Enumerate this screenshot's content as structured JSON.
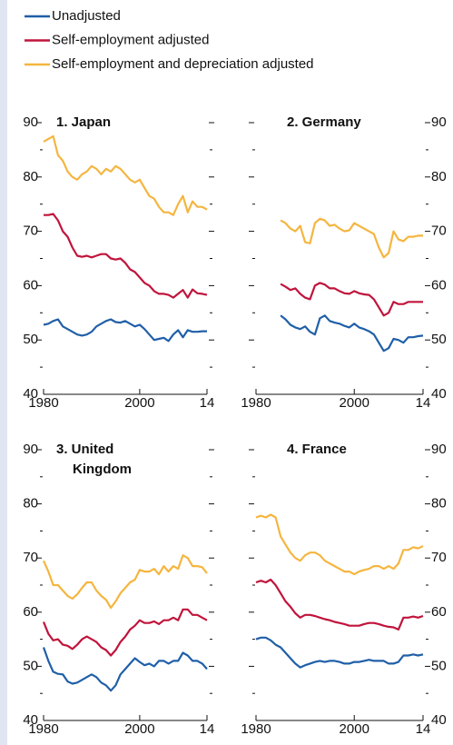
{
  "chart_data": [
    {
      "type": "line",
      "title": "1. Japan",
      "yaxis": "left",
      "x": [
        1980,
        1981,
        1982,
        1983,
        1984,
        1985,
        1986,
        1987,
        1988,
        1989,
        1990,
        1991,
        1992,
        1993,
        1994,
        1995,
        1996,
        1997,
        1998,
        1999,
        2000,
        2001,
        2002,
        2003,
        2004,
        2005,
        2006,
        2007,
        2008,
        2009,
        2010,
        2011,
        2012,
        2013,
        2014
      ],
      "xlim": [
        1980,
        2014
      ],
      "xticks": [
        1980,
        2000,
        {
          "value": 2014,
          "label": "14"
        }
      ],
      "ylim": [
        40,
        90
      ],
      "yticks": [
        40,
        50,
        60,
        70,
        80,
        90
      ],
      "yminor": [
        45,
        55,
        65,
        75,
        85
      ],
      "series": [
        {
          "name": "Unadjusted",
          "color": "#1f5fa8",
          "values": [
            52.8,
            53,
            53.5,
            53.8,
            52.5,
            52,
            51.5,
            51,
            50.8,
            51,
            51.5,
            52.5,
            53,
            53.5,
            53.8,
            53.3,
            53.2,
            53.5,
            53,
            52.5,
            52.8,
            52,
            51,
            50,
            50.2,
            50.4,
            49.8,
            51,
            51.8,
            50.5,
            51.8,
            51.5,
            51.5,
            51.6,
            51.6
          ]
        },
        {
          "name": "Self-employment adjusted",
          "color": "#c0143c",
          "values": [
            73,
            73,
            73.2,
            72,
            70,
            69,
            67,
            65.5,
            65.3,
            65.5,
            65.2,
            65.5,
            65.8,
            65.8,
            65,
            64.8,
            65,
            64.2,
            63,
            62.5,
            61.5,
            60.5,
            60,
            59,
            58.5,
            58.5,
            58.3,
            57.8,
            58.5,
            59.2,
            57.8,
            59.3,
            58.6,
            58.5,
            58.3
          ]
        },
        {
          "name": "Self-employment and depreciation adjusted",
          "color": "#f5b53f",
          "values": [
            86.5,
            87,
            87.5,
            84,
            83,
            81,
            80,
            79.5,
            80.5,
            81,
            82,
            81.5,
            80.5,
            81.5,
            81,
            82,
            81.5,
            80.5,
            79.5,
            79,
            79.5,
            78,
            76.5,
            76,
            74.5,
            73.5,
            73.5,
            73,
            75,
            76.5,
            73.5,
            75.5,
            74.5,
            74.5,
            74
          ]
        }
      ]
    },
    {
      "type": "line",
      "title": "2. Germany",
      "yaxis": "right",
      "x": [
        1985,
        1986,
        1987,
        1988,
        1989,
        1990,
        1991,
        1992,
        1993,
        1994,
        1995,
        1996,
        1997,
        1998,
        1999,
        2000,
        2001,
        2002,
        2003,
        2004,
        2005,
        2006,
        2007,
        2008,
        2009,
        2010,
        2011,
        2012,
        2013,
        2014
      ],
      "xlim": [
        1980,
        2014
      ],
      "xticks": [
        1980,
        2000,
        {
          "value": 2014,
          "label": "14"
        }
      ],
      "ylim": [
        40,
        90
      ],
      "yticks": [
        40,
        50,
        60,
        70,
        80,
        90
      ],
      "yminor": [
        45,
        55,
        65,
        75,
        85
      ],
      "series": [
        {
          "color": "#1f5fa8",
          "values": [
            54.5,
            53.8,
            52.8,
            52.3,
            52,
            52.5,
            51.5,
            51,
            54,
            54.5,
            53.5,
            53.2,
            53,
            52.6,
            52.3,
            53,
            52.3,
            52,
            51.6,
            51,
            49.5,
            48,
            48.5,
            50.2,
            50,
            49.5,
            50.5,
            50.5,
            50.7,
            50.8
          ]
        },
        {
          "color": "#c0143c",
          "values": [
            60.3,
            59.8,
            59.2,
            59.5,
            58.5,
            57.8,
            57.5,
            60,
            60.5,
            60.2,
            59.5,
            59.5,
            59,
            58.6,
            58.5,
            59,
            58.6,
            58.4,
            58.3,
            57.5,
            56,
            54.5,
            55,
            57,
            56.6,
            56.6,
            57,
            57,
            57,
            57
          ]
        },
        {
          "color": "#f5b53f",
          "values": [
            72,
            71.5,
            70.5,
            70,
            71,
            68,
            67.8,
            71.5,
            72.3,
            72,
            71,
            71.2,
            70.5,
            70,
            70.2,
            71.5,
            71,
            70.5,
            70,
            69.5,
            67,
            65.2,
            66,
            70,
            68.5,
            68.2,
            69,
            69,
            69.2,
            69.2
          ]
        }
      ]
    },
    {
      "type": "line",
      "title": "3. United Kingdom",
      "yaxis": "left",
      "x": [
        1980,
        1981,
        1982,
        1983,
        1984,
        1985,
        1986,
        1987,
        1988,
        1989,
        1990,
        1991,
        1992,
        1993,
        1994,
        1995,
        1996,
        1997,
        1998,
        1999,
        2000,
        2001,
        2002,
        2003,
        2004,
        2005,
        2006,
        2007,
        2008,
        2009,
        2010,
        2011,
        2012,
        2013,
        2014
      ],
      "xlim": [
        1980,
        2014
      ],
      "xticks": [
        1980,
        2000,
        {
          "value": 2014,
          "label": "14"
        }
      ],
      "ylim": [
        40,
        90
      ],
      "yticks": [
        40,
        50,
        60,
        70,
        80,
        90
      ],
      "yminor": [
        45,
        55,
        65,
        75,
        85
      ],
      "series": [
        {
          "color": "#1f5fa8",
          "values": [
            53.5,
            51,
            49,
            48.6,
            48.5,
            47.2,
            46.8,
            47,
            47.5,
            48,
            48.5,
            48,
            47,
            46.5,
            45.5,
            46.5,
            48.5,
            49.5,
            50.5,
            51.5,
            50.8,
            50.2,
            50.5,
            50,
            51,
            51,
            50.5,
            51,
            51,
            52.5,
            52,
            51,
            51,
            50.5,
            49.5
          ]
        },
        {
          "color": "#c0143c",
          "values": [
            58.2,
            56,
            54.8,
            55,
            54,
            53.8,
            53.2,
            54,
            55,
            55.5,
            55,
            54.5,
            53.5,
            53,
            52,
            53,
            54.5,
            55.5,
            56.8,
            57.5,
            58.5,
            58,
            58,
            58.3,
            57.8,
            58.5,
            58.5,
            59,
            58.5,
            60.5,
            60.5,
            59.5,
            59.5,
            59,
            58.5
          ]
        },
        {
          "color": "#f5b53f",
          "values": [
            69.5,
            67.5,
            65,
            65,
            64,
            63,
            62.5,
            63.3,
            64.5,
            65.5,
            65.5,
            64,
            63,
            62.3,
            60.8,
            62,
            63.5,
            64.5,
            65.5,
            66,
            67.8,
            67.5,
            67.5,
            68,
            67,
            68.5,
            67.5,
            68.5,
            68,
            70.5,
            70,
            68.5,
            68.5,
            68.3,
            67.2
          ]
        }
      ]
    },
    {
      "type": "line",
      "title": "4. France",
      "yaxis": "right",
      "x": [
        1980,
        1981,
        1982,
        1983,
        1984,
        1985,
        1986,
        1987,
        1988,
        1989,
        1990,
        1991,
        1992,
        1993,
        1994,
        1995,
        1996,
        1997,
        1998,
        1999,
        2000,
        2001,
        2002,
        2003,
        2004,
        2005,
        2006,
        2007,
        2008,
        2009,
        2010,
        2011,
        2012,
        2013,
        2014
      ],
      "xlim": [
        1980,
        2014
      ],
      "xticks": [
        1980,
        2000,
        {
          "value": 2014,
          "label": "14"
        }
      ],
      "ylim": [
        40,
        90
      ],
      "yticks": [
        40,
        50,
        60,
        70,
        80,
        90
      ],
      "yminor": [
        45,
        55,
        65,
        75,
        85
      ],
      "series": [
        {
          "color": "#1f5fa8",
          "values": [
            55,
            55.3,
            55.3,
            54.8,
            54,
            53.5,
            52.5,
            51.5,
            50.5,
            49.8,
            50.2,
            50.5,
            50.8,
            51,
            50.8,
            51,
            51,
            50.8,
            50.5,
            50.5,
            50.8,
            50.8,
            51,
            51.2,
            51,
            51,
            51,
            50.5,
            50.5,
            50.8,
            52,
            52,
            52.2,
            52,
            52.2
          ]
        },
        {
          "color": "#c0143c",
          "values": [
            65.5,
            65.8,
            65.5,
            66,
            65,
            63.5,
            62,
            61,
            59.8,
            59,
            59.5,
            59.5,
            59.3,
            59,
            58.7,
            58.5,
            58.2,
            58,
            57.8,
            57.5,
            57.5,
            57.5,
            57.8,
            58,
            58,
            57.8,
            57.5,
            57.3,
            57.2,
            56.8,
            59,
            59,
            59.2,
            59,
            59.3
          ]
        },
        {
          "color": "#f5b53f",
          "values": [
            77.5,
            77.8,
            77.5,
            78,
            77.5,
            74,
            72.5,
            71,
            70,
            69.5,
            70.5,
            71,
            71,
            70.5,
            69.5,
            69,
            68.5,
            68,
            67.5,
            67.5,
            67,
            67.5,
            67.8,
            68,
            68.5,
            68.5,
            68,
            68.5,
            68,
            69,
            71.5,
            71.5,
            72,
            71.8,
            72.2
          ]
        }
      ]
    }
  ]
}
